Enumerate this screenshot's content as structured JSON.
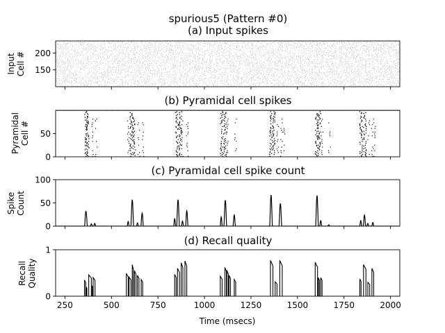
{
  "figure": {
    "suptitle": "spurious5 (Pattern #0)",
    "xlabel": "Time (msecs)"
  },
  "chart_data": [
    {
      "type": "scatter",
      "title": "(a) Input spikes",
      "ylabel": [
        "Input",
        "Cell #"
      ],
      "xlim": [
        200,
        2050
      ],
      "ylim": [
        100,
        236
      ],
      "x_ticks": [
        250,
        500,
        750,
        1000,
        1250,
        1500,
        1750,
        2000
      ],
      "y_ticks": [
        150,
        200
      ],
      "x_ticklabels_shown": false,
      "marker_color": "#bdbdbd",
      "description": "dense light-grey dot raster covering cells ~100-236 over the whole time range"
    },
    {
      "type": "scatter",
      "title": "(b) Pyramidal cell spikes",
      "ylabel": [
        "Pyramidal",
        "Cell #"
      ],
      "xlim": [
        200,
        2050
      ],
      "ylim": [
        0,
        100
      ],
      "x_ticks": [
        250,
        500,
        750,
        1000,
        1250,
        1500,
        1750,
        2000
      ],
      "y_ticks": [
        0,
        50
      ],
      "x_ticklabels_shown": false,
      "marker_color": "#000000",
      "top_row_y": 100,
      "bursts": [
        {
          "t": [
            362,
            370
          ],
          "extra": [
            395,
            415
          ]
        },
        {
          "t": [
            605,
            620
          ],
          "extra": [
            590,
            645,
            668
          ]
        },
        {
          "t": [
            850,
            868
          ],
          "extra": [
            880,
            905
          ]
        },
        {
          "t": [
            1090,
            1108
          ],
          "extra": [
            1120,
            1165
          ]
        },
        {
          "t": [
            1355,
            1370
          ],
          "extra": [
            1390,
            1412,
            1425
          ]
        },
        {
          "t": [
            1600,
            1615
          ],
          "extra": [
            1630,
            1670
          ]
        },
        {
          "t": [
            1840,
            1860
          ],
          "extra": [
            1880,
            1900,
            1912
          ]
        }
      ]
    },
    {
      "type": "line",
      "title": "(c) Pyramidal cell spike count",
      "ylabel": [
        "Spike",
        "Count"
      ],
      "xlim": [
        200,
        2050
      ],
      "ylim": [
        0,
        100
      ],
      "x_ticks": [
        250,
        500,
        750,
        1000,
        1250,
        1500,
        1750,
        2000
      ],
      "y_ticks": [
        0,
        50,
        100
      ],
      "x_ticklabels_shown": false,
      "series": [
        {
          "color": "#000000",
          "peaks": [
            {
              "x": 363,
              "y": 32,
              "w": 7
            },
            {
              "x": 392,
              "y": 5,
              "w": 5
            },
            {
              "x": 410,
              "y": 6,
              "w": 5
            },
            {
              "x": 590,
              "y": 10,
              "w": 5
            },
            {
              "x": 612,
              "y": 57,
              "w": 7
            },
            {
              "x": 640,
              "y": 7,
              "w": 5
            },
            {
              "x": 665,
              "y": 28,
              "w": 6
            },
            {
              "x": 840,
              "y": 16,
              "w": 5
            },
            {
              "x": 858,
              "y": 57,
              "w": 7
            },
            {
              "x": 882,
              "y": 11,
              "w": 5
            },
            {
              "x": 905,
              "y": 33,
              "w": 6
            },
            {
              "x": 1090,
              "y": 20,
              "w": 5
            },
            {
              "x": 1112,
              "y": 56,
              "w": 7
            },
            {
              "x": 1160,
              "y": 24,
              "w": 6
            },
            {
              "x": 1358,
              "y": 67,
              "w": 7
            },
            {
              "x": 1408,
              "y": 49,
              "w": 7
            },
            {
              "x": 1605,
              "y": 66,
              "w": 7
            },
            {
              "x": 1625,
              "y": 12,
              "w": 5
            },
            {
              "x": 1668,
              "y": 3,
              "w": 5
            },
            {
              "x": 1840,
              "y": 12,
              "w": 5
            },
            {
              "x": 1860,
              "y": 24,
              "w": 6
            },
            {
              "x": 1878,
              "y": 6,
              "w": 5
            },
            {
              "x": 1905,
              "y": 8,
              "w": 5
            }
          ]
        }
      ]
    },
    {
      "type": "line",
      "title": "(d) Recall quality",
      "ylabel": [
        "Recall",
        "Quality"
      ],
      "xlim": [
        200,
        2050
      ],
      "ylim": [
        0,
        1
      ],
      "x_ticks": [
        250,
        500,
        750,
        1000,
        1250,
        1500,
        1750,
        2000
      ],
      "x_ticklabels": [
        "250",
        "500",
        "750",
        "1000",
        "1250",
        "1500",
        "1750",
        "2000"
      ],
      "y_ticks": [
        0,
        1
      ],
      "series": [
        {
          "color": "#000000",
          "pulses": [
            {
              "x0": 355,
              "x1": 362,
              "y": 0.35
            },
            {
              "x0": 364,
              "x1": 368,
              "y": 0.2
            },
            {
              "x0": 378,
              "x1": 392,
              "y": 0.46
            },
            {
              "x0": 395,
              "x1": 400,
              "y": 0.22
            },
            {
              "x0": 402,
              "x1": 412,
              "y": 0.4
            },
            {
              "x0": 580,
              "x1": 590,
              "y": 0.49
            },
            {
              "x0": 595,
              "x1": 605,
              "y": 0.41
            },
            {
              "x0": 612,
              "x1": 618,
              "y": 0.68
            },
            {
              "x0": 624,
              "x1": 632,
              "y": 0.55
            },
            {
              "x0": 640,
              "x1": 648,
              "y": 0.45
            },
            {
              "x0": 660,
              "x1": 668,
              "y": 0.36
            },
            {
              "x0": 840,
              "x1": 848,
              "y": 0.47
            },
            {
              "x0": 855,
              "x1": 866,
              "y": 0.6
            },
            {
              "x0": 875,
              "x1": 884,
              "y": 0.72
            },
            {
              "x0": 895,
              "x1": 905,
              "y": 0.76
            },
            {
              "x0": 1085,
              "x1": 1095,
              "y": 0.43
            },
            {
              "x0": 1110,
              "x1": 1118,
              "y": 0.62
            },
            {
              "x0": 1120,
              "x1": 1128,
              "y": 0.56
            },
            {
              "x0": 1132,
              "x1": 1140,
              "y": 0.45
            },
            {
              "x0": 1160,
              "x1": 1168,
              "y": 0.36
            },
            {
              "x0": 1355,
              "x1": 1368,
              "y": 0.77
            },
            {
              "x0": 1380,
              "x1": 1390,
              "y": 0.31
            },
            {
              "x0": 1405,
              "x1": 1418,
              "y": 0.77
            },
            {
              "x0": 1595,
              "x1": 1608,
              "y": 0.73
            },
            {
              "x0": 1612,
              "x1": 1618,
              "y": 0.4
            },
            {
              "x0": 1625,
              "x1": 1632,
              "y": 0.4
            },
            {
              "x0": 1835,
              "x1": 1842,
              "y": 0.37
            },
            {
              "x0": 1855,
              "x1": 1868,
              "y": 0.68
            },
            {
              "x0": 1878,
              "x1": 1888,
              "y": 0.3
            },
            {
              "x0": 1900,
              "x1": 1910,
              "y": 0.6
            }
          ]
        }
      ]
    }
  ]
}
